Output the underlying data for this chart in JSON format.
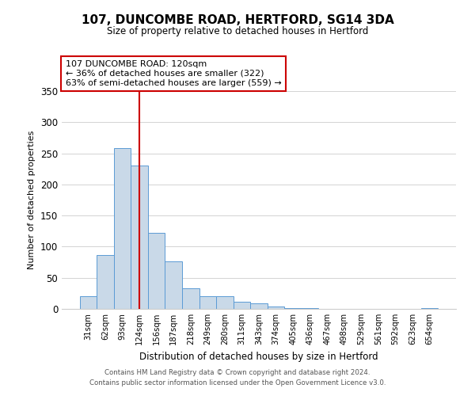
{
  "title": "107, DUNCOMBE ROAD, HERTFORD, SG14 3DA",
  "subtitle": "Size of property relative to detached houses in Hertford",
  "xlabel": "Distribution of detached houses by size in Hertford",
  "ylabel": "Number of detached properties",
  "bar_labels": [
    "31sqm",
    "62sqm",
    "93sqm",
    "124sqm",
    "156sqm",
    "187sqm",
    "218sqm",
    "249sqm",
    "280sqm",
    "311sqm",
    "343sqm",
    "374sqm",
    "405sqm",
    "436sqm",
    "467sqm",
    "498sqm",
    "529sqm",
    "561sqm",
    "592sqm",
    "623sqm",
    "654sqm"
  ],
  "bar_values": [
    20,
    87,
    258,
    230,
    122,
    77,
    33,
    20,
    20,
    11,
    9,
    4,
    1,
    1,
    0,
    0,
    0,
    0,
    0,
    0,
    1
  ],
  "bar_color": "#c9d9e8",
  "bar_edge_color": "#5b9bd5",
  "vline_x": 3,
  "vline_color": "#cc0000",
  "ylim": [
    0,
    350
  ],
  "yticks": [
    0,
    50,
    100,
    150,
    200,
    250,
    300,
    350
  ],
  "annotation_title": "107 DUNCOMBE ROAD: 120sqm",
  "annotation_line1": "← 36% of detached houses are smaller (322)",
  "annotation_line2": "63% of semi-detached houses are larger (559) →",
  "annotation_box_color": "#ffffff",
  "annotation_box_edge": "#cc0000",
  "footer1": "Contains HM Land Registry data © Crown copyright and database right 2024.",
  "footer2": "Contains public sector information licensed under the Open Government Licence v3.0."
}
